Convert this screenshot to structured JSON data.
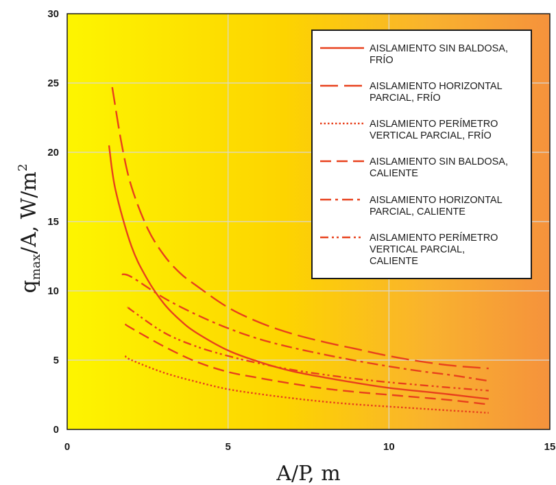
{
  "chart_data": {
    "type": "line",
    "title": "",
    "xlabel": "A/P, m",
    "ylabel": "q_max/A, W/m²",
    "ylabel_parts": {
      "main": "q",
      "sub": "max",
      "rest": "/A, W/m",
      "sup": "2"
    },
    "xlim": [
      0,
      15
    ],
    "ylim": [
      0,
      30
    ],
    "xticks": [
      0,
      5,
      10,
      15
    ],
    "yticks": [
      0,
      5,
      10,
      15,
      20,
      25,
      30
    ],
    "grid": true,
    "legend_position": "top-right",
    "series_color": "#e8401c",
    "series": [
      {
        "name": "AISLAMIENTO SIN BALDOSA, FRÍO",
        "legend_lines": [
          "AISLAMIENTO SIN BALDOSA,",
          "FRÍO"
        ],
        "dash": "solid",
        "x": [
          1.3,
          1.5,
          2,
          2.5,
          3,
          3.5,
          4,
          5,
          6,
          7,
          8,
          9,
          10,
          11,
          12,
          13.1
        ],
        "y": [
          20.5,
          17.3,
          13.2,
          10.8,
          9.1,
          7.9,
          7.0,
          5.7,
          4.85,
          4.2,
          3.75,
          3.35,
          3.0,
          2.75,
          2.5,
          2.2
        ]
      },
      {
        "name": "AISLAMIENTO HORIZONTAL PARCIAL, FRÍO",
        "legend_lines": [
          "AISLAMIENTO HORIZONTAL",
          "PARCIAL, FRÍO"
        ],
        "dash": "long-dash",
        "x": [
          1.4,
          1.7,
          2,
          2.5,
          3,
          3.5,
          4,
          5,
          6,
          7,
          8,
          9,
          10,
          11,
          12,
          13.1
        ],
        "y": [
          24.7,
          20.5,
          17.5,
          14.5,
          12.6,
          11.3,
          10.4,
          8.8,
          7.7,
          6.9,
          6.3,
          5.8,
          5.3,
          4.9,
          4.6,
          4.4
        ]
      },
      {
        "name": "AISLAMIENTO PERÍMETRO VERTICAL PARCIAL, FRÍO",
        "legend_lines": [
          "AISLAMIENTO PERÍMETRO",
          "VERTICAL PARCIAL, FRÍO"
        ],
        "dash": "dotted",
        "x": [
          1.8,
          2,
          3,
          4,
          5,
          6,
          7,
          8,
          9,
          10,
          11,
          12,
          13.1
        ],
        "y": [
          5.3,
          5.0,
          4.1,
          3.45,
          2.9,
          2.55,
          2.25,
          2.0,
          1.8,
          1.65,
          1.5,
          1.35,
          1.2
        ]
      },
      {
        "name": "AISLAMIENTO SIN BALDOSA, CALIENTE",
        "legend_lines": [
          "AISLAMIENTO SIN BALDOSA,",
          "CALIENTE"
        ],
        "dash": "dash",
        "x": [
          1.8,
          2,
          3,
          4,
          5,
          6,
          7,
          8,
          9,
          10,
          11,
          12,
          13.1
        ],
        "y": [
          7.6,
          7.3,
          6.0,
          4.9,
          4.15,
          3.7,
          3.3,
          2.95,
          2.7,
          2.5,
          2.3,
          2.1,
          1.8
        ]
      },
      {
        "name": "AISLAMIENTO HORIZONTAL PARCIAL, CALIENTE",
        "legend_lines": [
          "AISLAMIENTO HORIZONTAL",
          "PARCIAL, CALIENTE"
        ],
        "dash": "dash-dot",
        "x": [
          1.7,
          2,
          3,
          4,
          5,
          6,
          7,
          8,
          9,
          10,
          11,
          12,
          13.1
        ],
        "y": [
          11.2,
          11.0,
          9.5,
          8.3,
          7.3,
          6.5,
          5.9,
          5.4,
          4.95,
          4.55,
          4.2,
          3.9,
          3.5
        ]
      },
      {
        "name": "AISLAMIENTO PERÍMETRO VERTICAL PARCIAL, CALIENTE",
        "legend_lines": [
          "AISLAMIENTO PERÍMETRO",
          "VERTICAL PARCIAL,",
          "CALIENTE"
        ],
        "dash": "dash-dot-dot",
        "x": [
          1.9,
          2,
          3,
          4,
          5,
          6,
          7,
          8,
          9,
          10,
          11,
          12,
          13.1
        ],
        "y": [
          8.8,
          8.6,
          7.0,
          6.0,
          5.3,
          4.75,
          4.3,
          3.95,
          3.65,
          3.4,
          3.2,
          3.0,
          2.8
        ]
      }
    ]
  }
}
